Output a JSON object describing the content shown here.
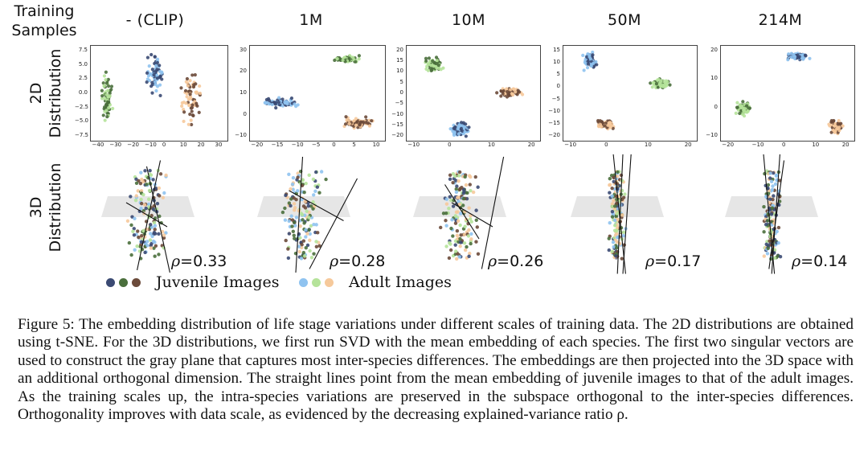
{
  "row_header": {
    "line1": "Training",
    "line2": "Samples"
  },
  "columns": [
    "- (CLIP)",
    "1M",
    "10M",
    "50M",
    "214M"
  ],
  "row_labels": {
    "row_2d": {
      "line1": "2D",
      "line2": "Distribution"
    },
    "row_3d": {
      "line1": "3D",
      "line2": "Distribution"
    }
  },
  "colors": {
    "juvenile": [
      "#3b4a73",
      "#4a6f3c",
      "#6b4a3a"
    ],
    "adult": [
      "#8fc3f0",
      "#b5e39a",
      "#f6c99b"
    ],
    "plane": "#e6e6e6"
  },
  "panels_2d": [
    {
      "xticks": [
        "−40",
        "−30",
        "−20",
        "−10",
        "0",
        "10",
        "20",
        "30"
      ],
      "yticks": [
        "7.5",
        "5.0",
        "2.5",
        "0.0",
        "−2.5",
        "−5.0",
        "−7.5"
      ]
    },
    {
      "xticks": [
        "−20",
        "−15",
        "−10",
        "−5",
        "0",
        "5",
        "10"
      ],
      "yticks": [
        "30",
        "20",
        "10",
        "0",
        "−10"
      ]
    },
    {
      "xticks": [
        "−10",
        "0",
        "10",
        "20"
      ],
      "yticks": [
        "20",
        "15",
        "10",
        "5",
        "0",
        "−5",
        "−10",
        "−15",
        "−20"
      ]
    },
    {
      "xticks": [
        "−10",
        "0",
        "10",
        "20"
      ],
      "yticks": [
        "15",
        "10",
        "5",
        "0",
        "−5",
        "−10",
        "−15",
        "−20"
      ]
    },
    {
      "xticks": [
        "−20",
        "−10",
        "0",
        "10",
        "20"
      ],
      "yticks": [
        "20",
        "10",
        "0",
        "−10"
      ]
    }
  ],
  "rho": {
    "symbol": "ρ",
    "values": [
      "=0.33",
      "=0.28",
      "=0.26",
      "=0.17",
      "=0.14"
    ]
  },
  "legend": {
    "juvenile": "Juvenile Images",
    "adult": "Adult Images"
  },
  "caption": {
    "label": "Figure 5:",
    "text": " The embedding distribution of life stage variations under different scales of training data. The 2D distributions are obtained using t-SNE. For the 3D distributions, we first run SVD with the mean embedding of each species. The first two singular vectors are used to construct the gray plane that captures most inter-species differences. The embeddings are then projected into the 3D space with an additional orthogonal dimension. The straight lines point from the mean embedding of juvenile images to that of the adult images. As the training scales up, the intra-species variations are preserved in the subspace orthogonal to the inter-species differences. Orthogonality improves with data scale, as evidenced by the decreasing explained-variance ratio ρ."
  }
}
